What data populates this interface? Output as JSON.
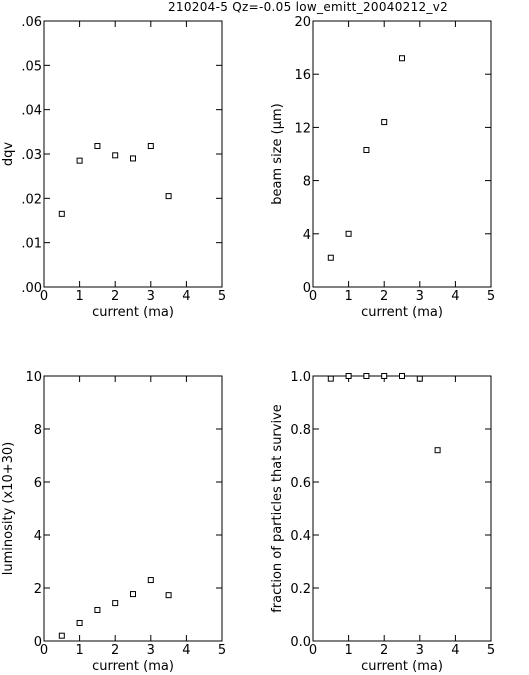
{
  "header": {
    "title": "210204-5  Qz=-0.05  low_emitt_20040212_v2"
  },
  "chart_data": [
    {
      "type": "scatter",
      "title": "",
      "xlabel": "current (ma)",
      "ylabel": "dqv",
      "xlim": [
        0,
        5
      ],
      "ylim": [
        0,
        0.06
      ],
      "xticks": [
        "0",
        "1",
        "2",
        "3",
        "4",
        "5"
      ],
      "yticks": [
        ".00",
        ".01",
        ".02",
        ".03",
        ".04",
        ".05",
        ".06"
      ],
      "x": [
        0.5,
        1.0,
        1.5,
        2.0,
        2.5,
        3.0,
        3.5
      ],
      "y": [
        0.0165,
        0.0285,
        0.0318,
        0.0297,
        0.029,
        0.0318,
        0.0205
      ],
      "grid": false,
      "marker": "open-square"
    },
    {
      "type": "scatter",
      "title": "",
      "xlabel": "current (ma)",
      "ylabel": "beam size (μm)",
      "xlim": [
        0,
        5
      ],
      "ylim": [
        0,
        20
      ],
      "xticks": [
        "0",
        "1",
        "2",
        "3",
        "4",
        "5"
      ],
      "yticks": [
        "0",
        "4",
        "8",
        "12",
        "16",
        "20"
      ],
      "x": [
        0.5,
        1.0,
        1.5,
        2.0,
        2.5
      ],
      "y": [
        2.2,
        4.0,
        10.3,
        12.4,
        17.2
      ],
      "grid": false,
      "marker": "open-square"
    },
    {
      "type": "scatter",
      "title": "",
      "xlabel": "current (ma)",
      "ylabel": "luminosity   (x10+30)",
      "xlim": [
        0,
        5
      ],
      "ylim": [
        0,
        10
      ],
      "xticks": [
        "0",
        "1",
        "2",
        "3",
        "4",
        "5"
      ],
      "yticks": [
        "0",
        "2",
        "4",
        "6",
        "8",
        "10"
      ],
      "x": [
        0.5,
        1.0,
        1.5,
        2.0,
        2.5,
        3.0,
        3.5
      ],
      "y": [
        0.2,
        0.68,
        1.17,
        1.43,
        1.77,
        2.3,
        1.73
      ],
      "grid": false,
      "marker": "open-square"
    },
    {
      "type": "scatter",
      "title": "",
      "xlabel": "current (ma)",
      "ylabel": "fraction of particles that survive",
      "xlim": [
        0,
        5
      ],
      "ylim": [
        0,
        1.0
      ],
      "xticks": [
        "0",
        "1",
        "2",
        "3",
        "4",
        "5"
      ],
      "yticks": [
        "0.0",
        "0.2",
        "0.4",
        "0.6",
        "0.8",
        "1.0"
      ],
      "x": [
        0.5,
        1.0,
        1.5,
        2.0,
        2.5,
        3.0,
        3.5
      ],
      "y": [
        0.99,
        1.0,
        1.0,
        1.0,
        1.0,
        0.99,
        0.72
      ],
      "grid": false,
      "marker": "open-square"
    }
  ]
}
